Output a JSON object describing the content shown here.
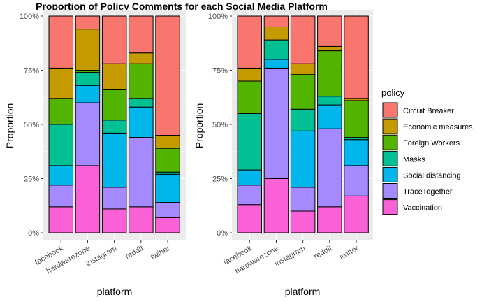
{
  "chart_data": {
    "type": "bar",
    "title": "Proportion of Policy Comments for each Social Media Platform",
    "legend_title": "policy",
    "legend_placement": "right",
    "grid": true,
    "colors": {
      "Circuit Breaker": "#F8766D",
      "Economic measures": "#C49A00",
      "Foreign Workers": "#53B400",
      "Masks": "#00C094",
      "Social distancing": "#00B6EB",
      "TraceTogether": "#A58AFF",
      "Vaccination": "#FB61D7"
    },
    "panels": [
      {
        "xlabel": "platform",
        "ylabel": "Proportion",
        "ylim": [
          0,
          1
        ],
        "yticks": [
          "0%",
          "25%",
          "50%",
          "75%",
          "100%"
        ],
        "categories": [
          "facebook",
          "hardwarezone",
          "instagram",
          "reddit",
          "twitter"
        ],
        "series": [
          {
            "name": "Vaccination",
            "values": [
              0.12,
              0.31,
              0.11,
              0.12,
              0.07
            ]
          },
          {
            "name": "TraceTogether",
            "values": [
              0.1,
              0.29,
              0.1,
              0.32,
              0.07
            ]
          },
          {
            "name": "Social distancing",
            "values": [
              0.09,
              0.08,
              0.25,
              0.14,
              0.13
            ]
          },
          {
            "name": "Masks",
            "values": [
              0.19,
              0.06,
              0.06,
              0.04,
              0.01
            ]
          },
          {
            "name": "Foreign Workers",
            "values": [
              0.12,
              0.01,
              0.14,
              0.16,
              0.11
            ]
          },
          {
            "name": "Economic measures",
            "values": [
              0.14,
              0.19,
              0.12,
              0.05,
              0.06
            ]
          },
          {
            "name": "Circuit Breaker",
            "values": [
              0.24,
              0.06,
              0.22,
              0.17,
              0.55
            ]
          }
        ]
      },
      {
        "xlabel": "platform",
        "ylabel": "Proportion",
        "ylim": [
          0,
          1
        ],
        "yticks": [
          "0%",
          "25%",
          "50%",
          "75%",
          "100%"
        ],
        "categories": [
          "facebook",
          "hardwarezone",
          "instagram",
          "reddit",
          "twitter"
        ],
        "series": [
          {
            "name": "Vaccination",
            "values": [
              0.13,
              0.25,
              0.1,
              0.12,
              0.17
            ]
          },
          {
            "name": "TraceTogether",
            "values": [
              0.09,
              0.51,
              0.11,
              0.36,
              0.14
            ]
          },
          {
            "name": "Social distancing",
            "values": [
              0.07,
              0.04,
              0.26,
              0.11,
              0.12
            ]
          },
          {
            "name": "Masks",
            "values": [
              0.26,
              0.09,
              0.1,
              0.04,
              0.01
            ]
          },
          {
            "name": "Foreign Workers",
            "values": [
              0.15,
              0.0,
              0.16,
              0.21,
              0.17
            ]
          },
          {
            "name": "Economic measures",
            "values": [
              0.06,
              0.06,
              0.05,
              0.02,
              0.01
            ]
          },
          {
            "name": "Circuit Breaker",
            "values": [
              0.24,
              0.05,
              0.22,
              0.14,
              0.38
            ]
          }
        ]
      }
    ]
  }
}
